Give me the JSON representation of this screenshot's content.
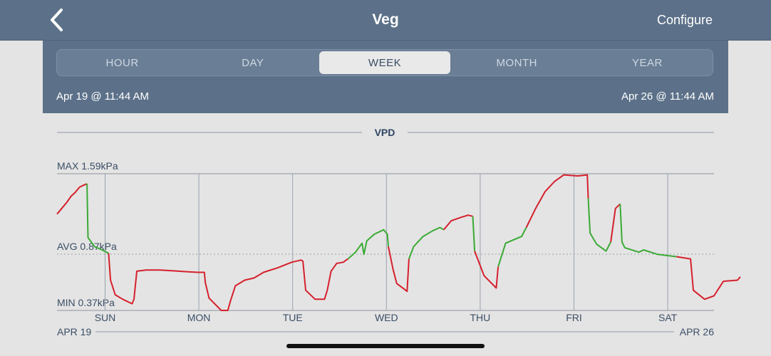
{
  "nav": {
    "title": "Veg",
    "configure_label": "Configure"
  },
  "segments": {
    "items": [
      {
        "label": "HOUR"
      },
      {
        "label": "DAY"
      },
      {
        "label": "WEEK"
      },
      {
        "label": "MONTH"
      },
      {
        "label": "YEAR"
      }
    ],
    "selected": "WEEK"
  },
  "range": {
    "start": "Apr 19 @ 11:44 AM",
    "end": "Apr 26 @ 11:44 AM"
  },
  "colors": {
    "header": "#5c7189",
    "in_range_line": "#3aaa35",
    "out_of_range_line": "#d6202c"
  },
  "chart_data": {
    "type": "line",
    "title": "VPD",
    "max_label": "MAX 1.59kPa",
    "avg_label": "AVG 0.87kPa",
    "min_label": "MIN 0.37kPa",
    "ylim": [
      0.37,
      1.59
    ],
    "avg": 0.87,
    "day_labels": [
      "SUN",
      "MON",
      "TUE",
      "WED",
      "THU",
      "FRI",
      "SAT"
    ],
    "start_date_label": "APR 19",
    "end_date_label": "APR 26",
    "grid": true,
    "series": [
      {
        "points": [
          [
            0.0,
            1.23
          ],
          [
            0.05,
            1.28
          ],
          [
            0.1,
            1.33
          ],
          [
            0.15,
            1.39
          ],
          [
            0.19,
            1.42
          ],
          [
            0.24,
            1.47
          ],
          [
            0.29,
            1.49
          ],
          [
            0.32,
            1.5
          ],
          [
            0.33,
            1.02
          ],
          [
            0.4,
            0.94
          ],
          [
            0.48,
            0.91
          ],
          [
            0.55,
            0.88
          ],
          [
            0.57,
            0.64
          ],
          [
            0.62,
            0.51
          ],
          [
            0.7,
            0.47
          ],
          [
            0.8,
            0.43
          ],
          [
            0.82,
            0.47
          ],
          [
            0.85,
            0.72
          ],
          [
            0.95,
            0.73
          ],
          [
            1.1,
            0.73
          ],
          [
            1.3,
            0.72
          ],
          [
            1.5,
            0.71
          ],
          [
            1.57,
            0.71
          ],
          [
            1.58,
            0.62
          ],
          [
            1.62,
            0.48
          ],
          [
            1.75,
            0.37
          ],
          [
            1.82,
            0.37
          ],
          [
            1.85,
            0.46
          ],
          [
            1.9,
            0.59
          ],
          [
            2.0,
            0.64
          ],
          [
            2.1,
            0.66
          ],
          [
            2.2,
            0.71
          ],
          [
            2.35,
            0.75
          ],
          [
            2.5,
            0.8
          ],
          [
            2.55,
            0.81
          ],
          [
            2.6,
            0.82
          ],
          [
            2.62,
            0.81
          ],
          [
            2.65,
            0.55
          ],
          [
            2.75,
            0.47
          ],
          [
            2.85,
            0.47
          ],
          [
            2.88,
            0.55
          ],
          [
            2.92,
            0.72
          ],
          [
            2.98,
            0.79
          ],
          [
            3.05,
            0.8
          ],
          [
            3.1,
            0.83
          ],
          [
            3.18,
            0.89
          ],
          [
            3.25,
            0.97
          ],
          [
            3.27,
            0.87
          ],
          [
            3.3,
            0.99
          ],
          [
            3.38,
            1.05
          ],
          [
            3.48,
            1.09
          ],
          [
            3.52,
            1.05
          ],
          [
            3.53,
            0.94
          ],
          [
            3.58,
            0.74
          ],
          [
            3.62,
            0.61
          ],
          [
            3.7,
            0.56
          ],
          [
            3.73,
            0.54
          ],
          [
            3.75,
            0.83
          ],
          [
            3.8,
            0.94
          ],
          [
            3.9,
            1.03
          ],
          [
            4.0,
            1.08
          ],
          [
            4.08,
            1.11
          ],
          [
            4.12,
            1.09
          ],
          [
            4.2,
            1.17
          ],
          [
            4.3,
            1.2
          ],
          [
            4.38,
            1.22
          ],
          [
            4.43,
            1.21
          ],
          [
            4.45,
            0.9
          ],
          [
            4.55,
            0.68
          ],
          [
            4.68,
            0.57
          ],
          [
            4.7,
            0.76
          ],
          [
            4.78,
            0.97
          ],
          [
            4.95,
            1.03
          ],
          [
            5.0,
            1.11
          ],
          [
            5.1,
            1.28
          ],
          [
            5.2,
            1.43
          ],
          [
            5.3,
            1.52
          ],
          [
            5.4,
            1.58
          ],
          [
            5.55,
            1.57
          ],
          [
            5.65,
            1.58
          ],
          [
            5.66,
            1.37
          ],
          [
            5.68,
            1.06
          ],
          [
            5.75,
            0.96
          ],
          [
            5.85,
            0.9
          ],
          [
            5.9,
            0.98
          ],
          [
            5.95,
            1.28
          ],
          [
            6.0,
            1.32
          ],
          [
            6.02,
            0.98
          ],
          [
            6.05,
            0.93
          ],
          [
            6.2,
            0.89
          ],
          [
            6.25,
            0.91
          ],
          [
            6.4,
            0.87
          ],
          [
            6.6,
            0.85
          ],
          [
            6.75,
            0.83
          ],
          [
            6.78,
            0.55
          ],
          [
            6.9,
            0.47
          ],
          [
            7.0,
            0.5
          ],
          [
            7.1,
            0.63
          ],
          [
            7.25,
            0.64
          ],
          [
            7.28,
            0.67
          ]
        ]
      }
    ]
  }
}
